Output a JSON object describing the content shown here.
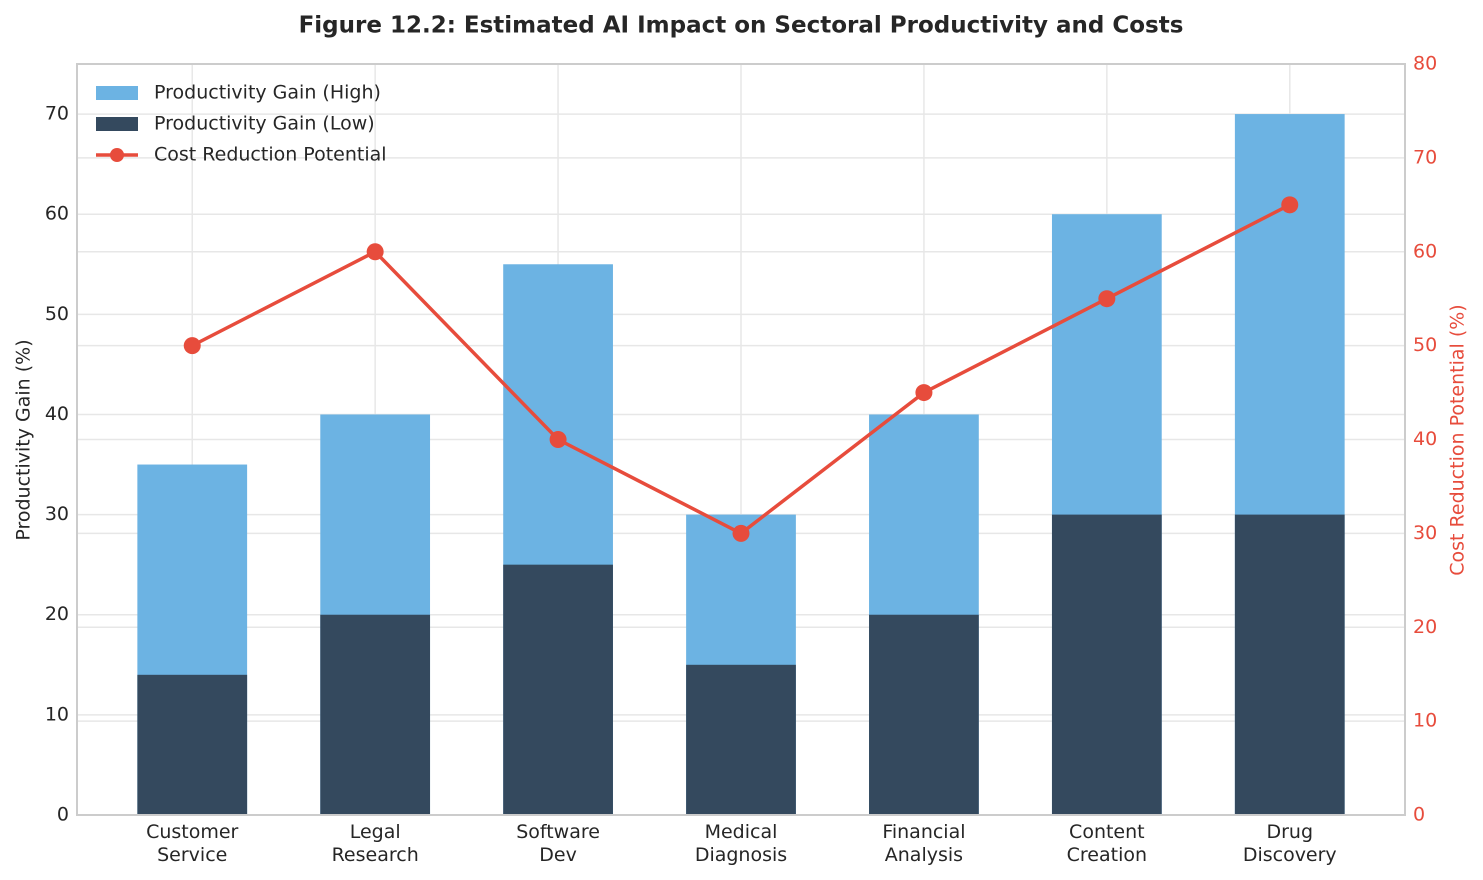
{
  "chart_data": {
    "type": "bar",
    "title": "Figure 12.2: Estimated AI Impact on Sectoral Productivity and Costs",
    "y_label": "Productivity Gain (%)",
    "y2_label": "Cost Reduction Potential (%)",
    "categories": [
      "Customer\nService",
      "Legal\nResearch",
      "Software\nDev",
      "Medical\nDiagnosis",
      "Financial\nAnalysis",
      "Content\nCreation",
      "Drug\nDiscovery"
    ],
    "series": [
      {
        "name": "Productivity Gain (High)",
        "color": "#6cb3e3",
        "values": [
          35,
          40,
          55,
          30,
          40,
          60,
          70
        ]
      },
      {
        "name": "Productivity Gain (Low)",
        "color": "#34495e",
        "values": [
          14,
          20,
          25,
          15,
          20,
          30,
          30
        ]
      },
      {
        "name": "Cost Reduction Potential",
        "color": "#e74c3c",
        "type": "line",
        "axis": "y2",
        "values": [
          50,
          60,
          40,
          30,
          45,
          55,
          65
        ]
      }
    ],
    "ylim": [
      0,
      75
    ],
    "yticks": [
      0,
      10,
      20,
      30,
      40,
      50,
      60,
      70
    ],
    "y2lim": [
      0,
      80
    ],
    "y2ticks": [
      0,
      10,
      20,
      30,
      40,
      50,
      60,
      70,
      80
    ],
    "grid": true,
    "legend": "upper-left"
  }
}
